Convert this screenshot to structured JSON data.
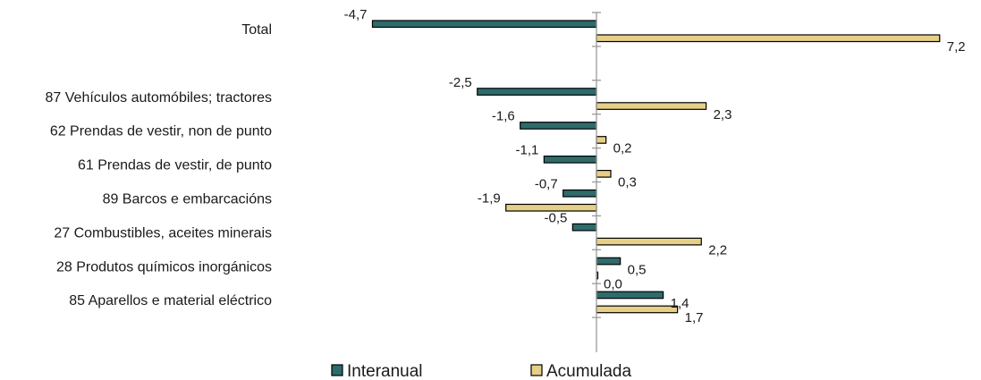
{
  "chart_data": {
    "type": "bar",
    "orientation": "horizontal",
    "xlim": [
      -6,
      7.5
    ],
    "grid": false,
    "legend_position": "bottom",
    "categories": [
      "Total",
      "",
      "87 Vehículos automóbiles; tractores",
      "62 Prendas de vestir, non de punto",
      "61 Prendas de vestir, de punto",
      "89 Barcos e embarcacións",
      "27 Combustibles, aceites minerais",
      "28 Produtos químicos inorgánicos",
      "85 Aparellos e material eléctrico"
    ],
    "series": [
      {
        "name": "Interanual",
        "color": "#2e6b6b",
        "values": [
          -4.7,
          null,
          -2.5,
          -1.6,
          -1.1,
          -0.7,
          -0.5,
          0.5,
          1.4
        ],
        "labels": [
          "-4,7",
          "",
          "-2,5",
          "-1,6",
          "-1,1",
          "-0,7",
          "-0,5",
          "0,5",
          "1,4"
        ]
      },
      {
        "name": "Acumulada",
        "color": "#e6cf86",
        "values": [
          7.2,
          null,
          2.3,
          0.2,
          0.3,
          -1.9,
          2.2,
          0.0,
          1.7
        ],
        "labels": [
          "7,2",
          "",
          "2,3",
          "0,2",
          "0,3",
          "-1,9",
          "2,2",
          "0,0",
          "1,7"
        ]
      }
    ]
  }
}
